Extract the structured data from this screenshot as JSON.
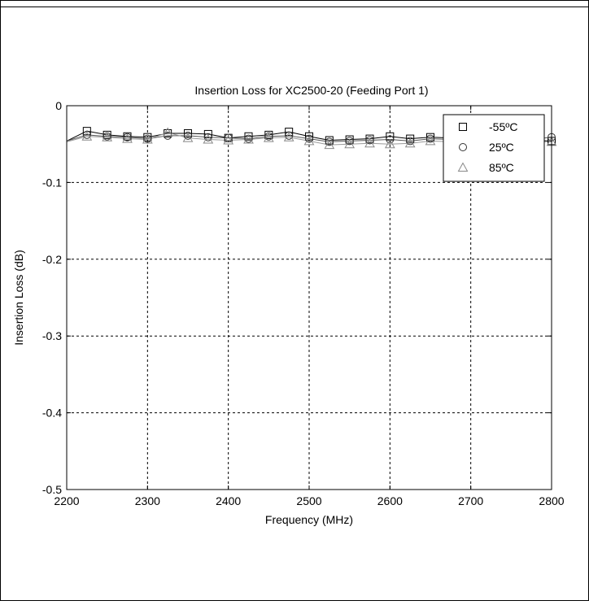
{
  "chart_data": {
    "type": "line",
    "title": "Insertion Loss for XC2500-20 (Feeding Port 1)",
    "xlabel": "Frequency (MHz)",
    "ylabel": "Insertion Loss (dB)",
    "xlim": [
      2200,
      2800
    ],
    "ylim": [
      -0.5,
      0
    ],
    "xticks": [
      2200,
      2300,
      2400,
      2500,
      2600,
      2700,
      2800
    ],
    "yticks": [
      0,
      -0.1,
      -0.2,
      -0.3,
      -0.4,
      -0.5
    ],
    "xtick_labels": [
      "2200",
      "2300",
      "2400",
      "2500",
      "2600",
      "2700",
      "2800"
    ],
    "ytick_labels": [
      "0",
      "-0.1",
      "-0.2",
      "-0.3",
      "-0.4",
      "-0.5"
    ],
    "grid": true,
    "legend_position": "top-right",
    "x": [
      2200,
      2225,
      2250,
      2275,
      2300,
      2325,
      2350,
      2375,
      2400,
      2425,
      2450,
      2475,
      2500,
      2525,
      2550,
      2575,
      2600,
      2625,
      2650,
      2675,
      2700,
      2725,
      2750,
      2775,
      2800
    ],
    "series": [
      {
        "name": "-55ºC",
        "marker": "square",
        "values": [
          -0.046,
          -0.033,
          -0.038,
          -0.04,
          -0.041,
          -0.036,
          -0.036,
          -0.037,
          -0.042,
          -0.04,
          -0.038,
          -0.034,
          -0.04,
          -0.045,
          -0.044,
          -0.043,
          -0.04,
          -0.043,
          -0.041,
          -0.042,
          -0.041,
          -0.042,
          -0.044,
          -0.045,
          -0.046
        ]
      },
      {
        "name": "25ºC",
        "marker": "circle",
        "values": [
          -0.046,
          -0.038,
          -0.04,
          -0.041,
          -0.043,
          -0.039,
          -0.039,
          -0.041,
          -0.042,
          -0.043,
          -0.04,
          -0.039,
          -0.043,
          -0.047,
          -0.046,
          -0.045,
          -0.044,
          -0.046,
          -0.043,
          -0.044,
          -0.043,
          -0.044,
          -0.043,
          -0.044,
          -0.041
        ]
      },
      {
        "name": "85ºC",
        "marker": "triangle",
        "values": [
          -0.047,
          -0.04,
          -0.041,
          -0.043,
          -0.044,
          -0.035,
          -0.042,
          -0.044,
          -0.045,
          -0.044,
          -0.042,
          -0.041,
          -0.046,
          -0.051,
          -0.05,
          -0.049,
          -0.05,
          -0.049,
          -0.046,
          -0.047,
          -0.046,
          -0.047,
          -0.046,
          -0.047,
          -0.047
        ]
      }
    ]
  }
}
